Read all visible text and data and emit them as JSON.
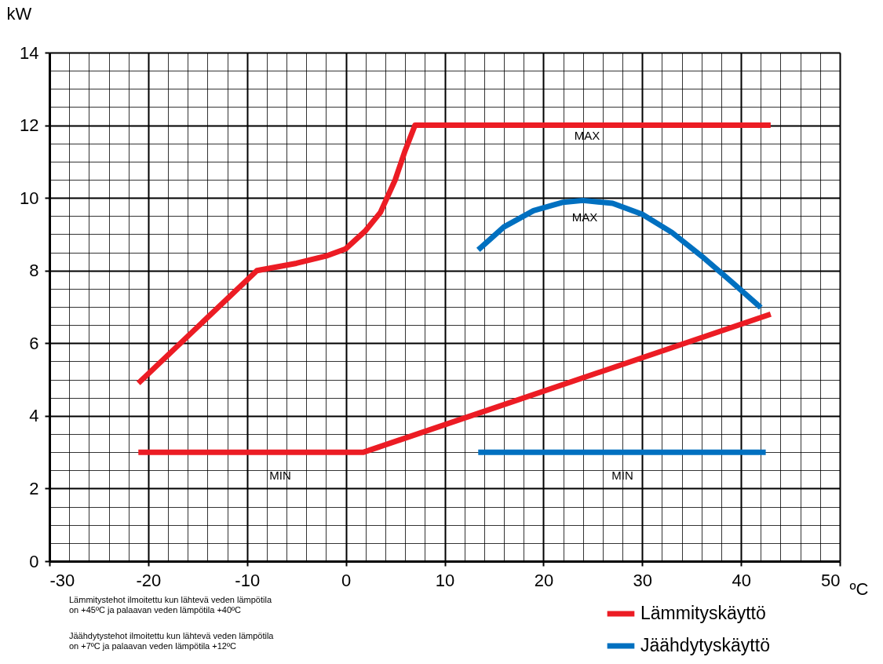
{
  "chart_data": {
    "type": "line",
    "xlabel": "ºC",
    "ylabel": "kW",
    "xlim": [
      -30,
      50
    ],
    "ylim": [
      0,
      14
    ],
    "xticks": [
      -30,
      {
        "value": -28,
        "label": null
      },
      {
        "value": -26,
        "label": null
      },
      {
        "value": -24,
        "label": null
      },
      {
        "value": -22,
        "label": null
      },
      -20,
      {
        "value": -18,
        "label": null
      },
      {
        "value": -16,
        "label": null
      },
      {
        "value": -14,
        "label": null
      },
      {
        "value": -12,
        "label": null
      },
      -10,
      {
        "value": -8,
        "label": null
      },
      {
        "value": -6,
        "label": null
      },
      {
        "value": -4,
        "label": null
      },
      {
        "value": -2,
        "label": null
      },
      0,
      {
        "value": 2,
        "label": null
      },
      {
        "value": 4,
        "label": null
      },
      {
        "value": 6,
        "label": null
      },
      {
        "value": 8,
        "label": null
      },
      10,
      {
        "value": 12,
        "label": null
      },
      {
        "value": 14,
        "label": null
      },
      {
        "value": 16,
        "label": null
      },
      {
        "value": 18,
        "label": null
      },
      20,
      {
        "value": 22,
        "label": null
      },
      {
        "value": 24,
        "label": null
      },
      {
        "value": 26,
        "label": null
      },
      {
        "value": 28,
        "label": null
      },
      30,
      {
        "value": 32,
        "label": null
      },
      {
        "value": 34,
        "label": null
      },
      {
        "value": 36,
        "label": null
      },
      {
        "value": 38,
        "label": null
      },
      40,
      {
        "value": 42,
        "label": null
      },
      {
        "value": 44,
        "label": null
      },
      {
        "value": 46,
        "label": null
      },
      {
        "value": 48,
        "label": null
      },
      50
    ],
    "yticks": [
      0,
      {
        "value": 0.5,
        "label": null
      },
      {
        "value": 1,
        "label": null
      },
      {
        "value": 1.5,
        "label": null
      },
      2,
      {
        "value": 2.5,
        "label": null
      },
      {
        "value": 3,
        "label": null
      },
      {
        "value": 3.5,
        "label": null
      },
      4,
      {
        "value": 4.5,
        "label": null
      },
      {
        "value": 5,
        "label": null
      },
      {
        "value": 5.5,
        "label": null
      },
      6,
      {
        "value": 6.5,
        "label": null
      },
      {
        "value": 7,
        "label": null
      },
      {
        "value": 7.5,
        "label": null
      },
      8,
      {
        "value": 8.5,
        "label": null
      },
      {
        "value": 9,
        "label": null
      },
      {
        "value": 9.5,
        "label": null
      },
      10,
      {
        "value": 10.5,
        "label": null
      },
      {
        "value": 11,
        "label": null
      },
      {
        "value": 11.5,
        "label": null
      },
      12,
      {
        "value": 12.5,
        "label": null
      },
      {
        "value": 13,
        "label": null
      },
      {
        "value": 13.5,
        "label": null
      },
      14
    ],
    "grid": true,
    "legend": "bottom right",
    "marker": "none",
    "line_style": "solid",
    "series": [
      {
        "name": "Lämmityskäyttö",
        "color": "#ec1c24",
        "x": [
          -21,
          -9,
          -5,
          -2,
          0,
          2,
          3.5,
          5,
          6,
          7,
          43
        ],
        "values": [
          4.9,
          8,
          8.2,
          8.4,
          8.6,
          9.1,
          9.6,
          10.5,
          11.3,
          12,
          12
        ]
      },
      {
        "color": "#ec1c24",
        "x": [
          -21,
          1.8,
          43
        ],
        "values": [
          3,
          3,
          6.8
        ]
      },
      {
        "name": "Jäähdytyskäyttö",
        "color": "#0070c0",
        "x": [
          13.4,
          16,
          19,
          22,
          24,
          27,
          30,
          33,
          36,
          39,
          42
        ],
        "values": [
          8.57,
          9.2,
          9.65,
          9.88,
          9.93,
          9.85,
          9.55,
          9.05,
          8.4,
          7.7,
          6.98
        ]
      },
      {
        "color": "#0070c0",
        "x": [
          13.4,
          42.5
        ],
        "values": [
          3,
          3
        ]
      }
    ],
    "annotations": [
      "MAX",
      "MAX",
      "MIN",
      "MIN",
      "Lämmitystehot ilmoitettu kun lähtevä veden lämpötila\non +45ºC ja palaavan veden lämpötila +40ºC",
      "Jäähdytystehot ilmoitettu kun lähtevä veden lämpötila\non +7ºC ja palaavan veden lämpötila +12ºC"
    ]
  }
}
